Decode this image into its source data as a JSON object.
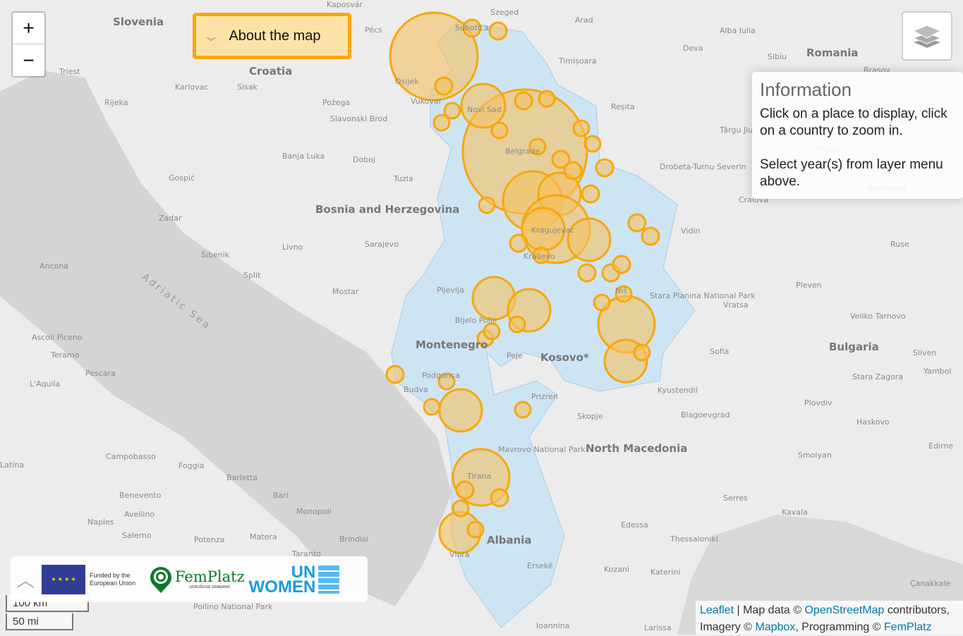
{
  "map": {
    "region_color": "#cde4f3",
    "marker_color": "#f7a70c",
    "marker_fill": "#f5c160",
    "labels": [
      {
        "text": "Slovenia",
        "cls": "country"
      },
      {
        "text": "Croatia",
        "cls": "country"
      },
      {
        "text": "Bosnia and Herzegovina",
        "cls": "country"
      },
      {
        "text": "Montenegro",
        "cls": "country"
      },
      {
        "text": "Kosovo*",
        "cls": "country"
      },
      {
        "text": "North Macedonia",
        "cls": "country"
      },
      {
        "text": "Albania",
        "cls": "country"
      },
      {
        "text": "Bulgaria",
        "cls": "country"
      },
      {
        "text": "Romania",
        "cls": "country"
      },
      {
        "text": "Adriatic Sea",
        "cls": "sea"
      },
      {
        "text": "Triest"
      },
      {
        "text": "Karlovac"
      },
      {
        "text": "Sisak"
      },
      {
        "text": "Rijeka"
      },
      {
        "text": "Pécs"
      },
      {
        "text": "Szeged"
      },
      {
        "text": "Arad"
      },
      {
        "text": "Kaposvár"
      },
      {
        "text": "Timișoara"
      },
      {
        "text": "Deva"
      },
      {
        "text": "Alba Iulia"
      },
      {
        "text": "Sibiu"
      },
      {
        "text": "Reșita"
      },
      {
        "text": "Târgu Jiu"
      },
      {
        "text": "Drobeta-Turnu Severin"
      },
      {
        "text": "Craiova"
      },
      {
        "text": "Vidin"
      },
      {
        "text": "Ruse"
      },
      {
        "text": "Pleven"
      },
      {
        "text": "Vratsa"
      },
      {
        "text": "Veliko Tarnovo"
      },
      {
        "text": "Sofia"
      },
      {
        "text": "Sliven"
      },
      {
        "text": "Yambol"
      },
      {
        "text": "Stara Zagora"
      },
      {
        "text": "Plovdiv"
      },
      {
        "text": "Haskovo"
      },
      {
        "text": "Smolyan"
      },
      {
        "text": "Edirne"
      },
      {
        "text": "Kyustendil"
      },
      {
        "text": "Blagoevgrad"
      },
      {
        "text": "Skopje"
      },
      {
        "text": "Serres"
      },
      {
        "text": "Kavala"
      },
      {
        "text": "Thessaloniki"
      },
      {
        "text": "Edessa"
      },
      {
        "text": "Kozani"
      },
      {
        "text": "Katerini"
      },
      {
        "text": "Çanakkale"
      },
      {
        "text": "Larissa"
      },
      {
        "text": "Ioannina"
      },
      {
        "text": "Požega"
      },
      {
        "text": "Slavonski Brod"
      },
      {
        "text": "Banja Luka"
      },
      {
        "text": "Doboj"
      },
      {
        "text": "Tuzla"
      },
      {
        "text": "Gospić"
      },
      {
        "text": "Zadar"
      },
      {
        "text": "Šibenik"
      },
      {
        "text": "Split"
      },
      {
        "text": "Livno"
      },
      {
        "text": "Sarajevo"
      },
      {
        "text": "Mostar"
      },
      {
        "text": "Pljevlja"
      },
      {
        "text": "Bijelo Polje"
      },
      {
        "text": "Podgorica"
      },
      {
        "text": "Budva"
      },
      {
        "text": "Peje"
      },
      {
        "text": "Prizren"
      },
      {
        "text": "Tirana"
      },
      {
        "text": "Vlora"
      },
      {
        "text": "Ersekë"
      },
      {
        "text": "Ancona"
      },
      {
        "text": "Ascoli Piceno"
      },
      {
        "text": "Teramo"
      },
      {
        "text": "Pescara"
      },
      {
        "text": "L'Aquila"
      },
      {
        "text": "Latina"
      },
      {
        "text": "Campobasso"
      },
      {
        "text": "Foggia"
      },
      {
        "text": "Barletta"
      },
      {
        "text": "Benevento"
      },
      {
        "text": "Bari"
      },
      {
        "text": "Avellino"
      },
      {
        "text": "Naples"
      },
      {
        "text": "Salerno"
      },
      {
        "text": "Potenza"
      },
      {
        "text": "Matera"
      },
      {
        "text": "Brindisi"
      },
      {
        "text": "Monopoli"
      },
      {
        "text": "Taranto"
      },
      {
        "text": "Pollino National Park"
      },
      {
        "text": "Belgrade"
      },
      {
        "text": "Osijek"
      },
      {
        "text": "Vukovar"
      },
      {
        "text": "Subotica"
      },
      {
        "text": "Novi Sad"
      },
      {
        "text": "Niš"
      },
      {
        "text": "Kragujevac"
      },
      {
        "text": "Kraljevo"
      },
      {
        "text": "Stara Planina National Park"
      },
      {
        "text": "Mavrovo National Park"
      },
      {
        "text": "Bucharest"
      },
      {
        "text": "Brasov"
      },
      {
        "text": "Pitesti"
      }
    ]
  },
  "controls": {
    "zoom_in": "+",
    "zoom_out": "−",
    "about_label": "About the map",
    "layers_icon": "layers-icon"
  },
  "info": {
    "title": "Information",
    "line1": "Click on a place to display, click on a country to zoom in.",
    "line2": "Select year(s) from layer menu above."
  },
  "logos": {
    "eu_text": "Funded by the European Union",
    "femplatz": "FemPlatz",
    "femplatz_sub": "UDRUŽENJE GRAĐANKI",
    "un_women_1": "UN",
    "un_women_2": "WOMEN"
  },
  "scale": {
    "km": "100 km",
    "mi": "50 mi"
  },
  "attribution": {
    "leaflet": "Leaflet",
    "sep": " | Map data © ",
    "osm": "OpenStreetMap",
    "contrib": " contributors, Imagery © ",
    "mapbox": "Mapbox",
    "prog": ", Programming © ",
    "femplatz": "FemPlatz"
  }
}
